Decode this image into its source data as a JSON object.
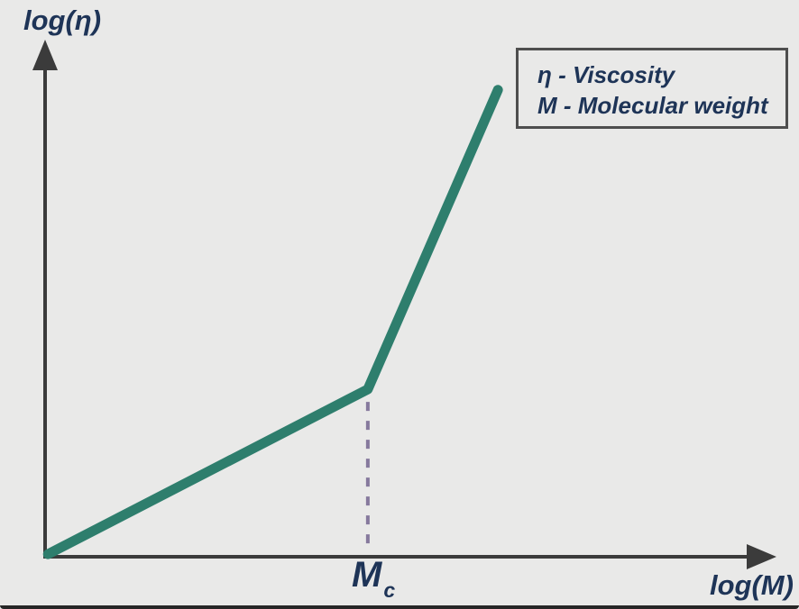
{
  "colors": {
    "bg": "#e9e9e8",
    "axis": "#3b3b3b",
    "curve": "#2e7e6d",
    "dashed": "#86799d",
    "text": "#1e3457",
    "legend_border": "#4e4e4e",
    "bottom_edge": "#262626"
  },
  "labels": {
    "y_axis": "log(η)",
    "x_axis": "log(M)",
    "breakpoint_main": "M",
    "breakpoint_sub": "c"
  },
  "legend": {
    "lines": [
      "η - Viscosity",
      "M - Molecular weight"
    ]
  },
  "chart_data": {
    "type": "line",
    "title": "",
    "xlabel": "log(M)",
    "ylabel": "log(η)",
    "axes": "schematic, no numeric ticks; arrows on both axes",
    "grid": false,
    "legend_position": "top-right",
    "series": [
      {
        "name": "log(viscosity) vs log(molecular weight)",
        "points_frac": [
          [
            0.004,
            0.005
          ],
          [
            0.444,
            0.325
          ],
          [
            0.623,
            0.906
          ]
        ],
        "description": "Two linear segments: shallow slope below critical molecular weight Mc, steep slope above Mc"
      }
    ],
    "breakpoint": {
      "label": "Mc",
      "x_frac": 0.444,
      "y_frac": 0.325,
      "guide": "vertical dashed line from kink down to x-axis"
    },
    "xlim_frac": [
      0,
      1
    ],
    "ylim_frac": [
      0,
      1
    ]
  }
}
